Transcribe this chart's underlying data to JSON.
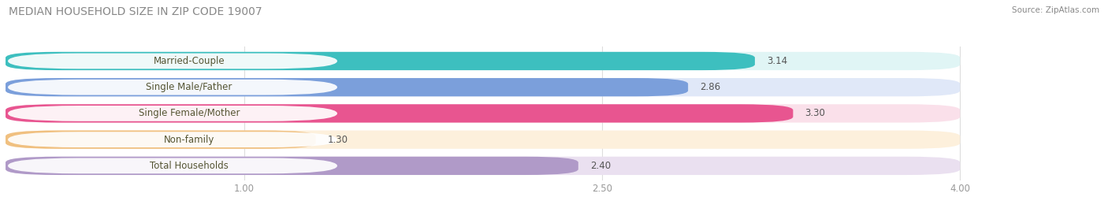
{
  "title": "MEDIAN HOUSEHOLD SIZE IN ZIP CODE 19007",
  "source": "Source: ZipAtlas.com",
  "categories": [
    "Married-Couple",
    "Single Male/Father",
    "Single Female/Mother",
    "Non-family",
    "Total Households"
  ],
  "values": [
    3.14,
    2.86,
    3.3,
    1.3,
    2.4
  ],
  "bar_colors": [
    "#3DBFBF",
    "#7B9FDB",
    "#E85590",
    "#F0C080",
    "#B09AC8"
  ],
  "bar_bg_colors": [
    "#E0F5F5",
    "#E0E8F8",
    "#FAE0EA",
    "#FDF0DC",
    "#EAE0F0"
  ],
  "label_bg_color": "#FFFFFF",
  "xlim_min": 0.0,
  "xlim_max": 4.0,
  "xticks": [
    1.0,
    2.5,
    4.0
  ],
  "label_fontsize": 8.5,
  "value_fontsize": 8.5,
  "title_fontsize": 10,
  "source_fontsize": 7.5,
  "title_color": "#888888",
  "source_color": "#888888",
  "label_color": "#555533",
  "value_color": "#555555",
  "background_color": "#FFFFFF",
  "grid_color": "#DDDDDD",
  "tick_color": "#999999"
}
